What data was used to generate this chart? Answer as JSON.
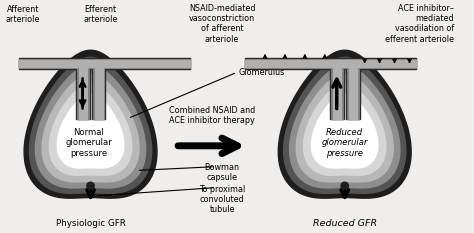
{
  "fig_bg": "#f0eeec",
  "labels": {
    "afferent_left": "Afferent\narteriole",
    "efferent_left": "Efferent\narteriole",
    "nsaid": "NSAID-mediated\nvasoconstriction\nof afferent\narteriole",
    "ace": "ACE inhibitor–\nmediated\nvasodilation of\nefferent arteriole",
    "glomerulus": "Glomerulus",
    "combined": "Combined NSAID and\nACE inhibitor therapy",
    "normal_pressure": "Normal\nglomerular\npressure",
    "reduced_pressure": "Reduced\nglomerular\npressure",
    "bowman": "Bowman\ncapsule",
    "proximal": "To proximal\nconvoluted\ntubule",
    "physiologic": "Physiologic GFR",
    "reduced_gfr": "Reduced GFR"
  }
}
